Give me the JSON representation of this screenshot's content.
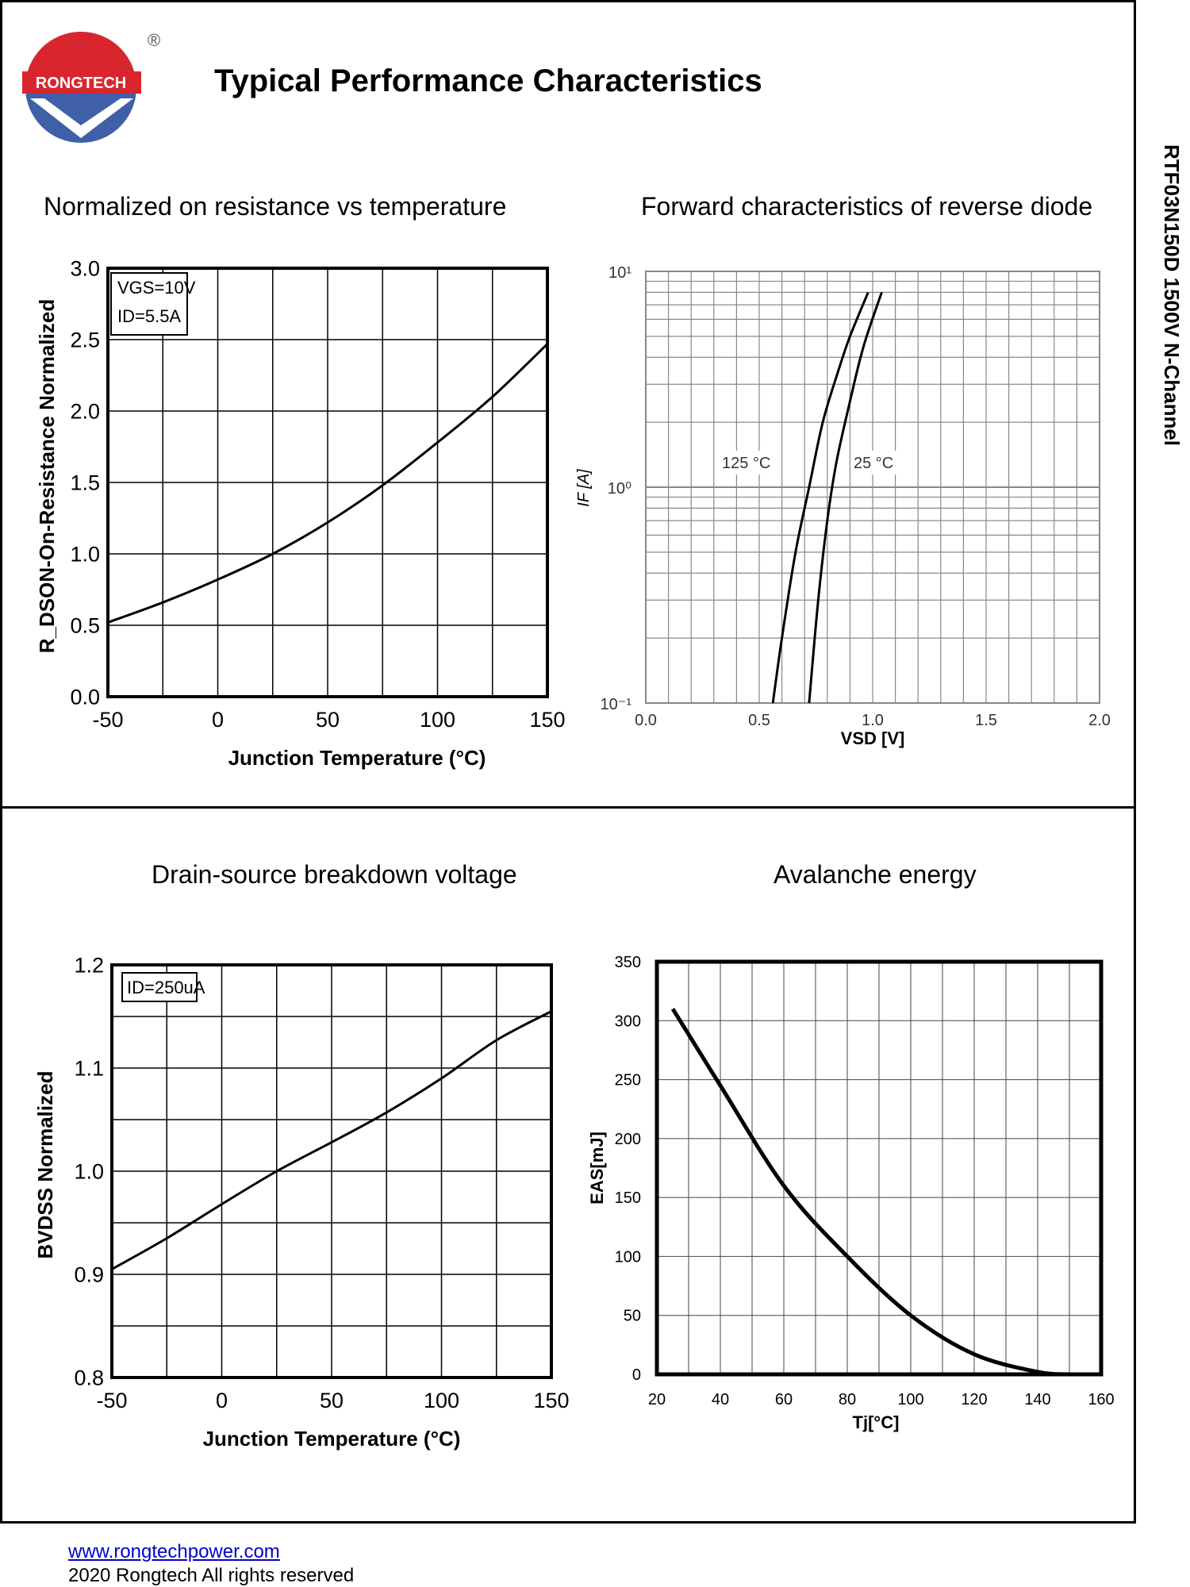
{
  "brand": {
    "name": "RONGTECH",
    "registered": "®"
  },
  "header": {
    "title": "Typical Performance Characteristics"
  },
  "side_title": "RTF03N150D 1500V N-Channel",
  "footer": {
    "link": "www.rongtechpower.com",
    "copyright": "2020 Rongtech All rights reserved"
  },
  "colors": {
    "logo_red": "#d9262e",
    "logo_blue": "#3f5fa8",
    "link": "#0000cc"
  },
  "chart_data": [
    {
      "id": "rdson",
      "type": "line",
      "title": "Normalized on resistance vs temperature",
      "xlabel": "Junction Temperature (°C)",
      "ylabel": "R_DSON-On-Resistance Normalized",
      "xlim": [
        -50,
        150
      ],
      "ylim": [
        0,
        3.0
      ],
      "xticks": [
        -50,
        0,
        50,
        100,
        150
      ],
      "yticks": [
        0.0,
        0.5,
        1.0,
        1.5,
        2.0,
        2.5,
        3.0
      ],
      "ytick_labels": [
        "0.0",
        "0.5",
        "1.0",
        "1.5",
        "2.0",
        "2.5",
        "3.0"
      ],
      "annotations": [
        "VGS=10V",
        "ID=5.5A"
      ],
      "series": [
        {
          "name": "RDSON",
          "x": [
            -50,
            -25,
            0,
            25,
            50,
            75,
            100,
            125,
            150
          ],
          "y": [
            0.52,
            0.66,
            0.82,
            1.0,
            1.22,
            1.48,
            1.78,
            2.1,
            2.47
          ]
        }
      ]
    },
    {
      "id": "diode",
      "type": "line",
      "title": "Forward characteristics of reverse diode",
      "xlabel": "VSD [V]",
      "ylabel": "IF [A]",
      "xlim": [
        0,
        2.0
      ],
      "ylim": [
        0.1,
        10
      ],
      "yscale": "log",
      "xticks": [
        0.0,
        0.5,
        1.0,
        1.5,
        2.0
      ],
      "xtick_labels": [
        "0.0",
        "0.5",
        "1.0",
        "1.5",
        "2.0"
      ],
      "ytick_labels": [
        "10¹",
        "10⁰",
        "10⁻¹"
      ],
      "series": [
        {
          "name": "125 °C",
          "x": [
            0.56,
            0.6,
            0.66,
            0.72,
            0.78,
            0.85,
            0.9,
            0.98
          ],
          "y": [
            0.1,
            0.2,
            0.5,
            1.0,
            2.0,
            3.5,
            5.0,
            8.0
          ]
        },
        {
          "name": "25 °C",
          "x": [
            0.72,
            0.76,
            0.8,
            0.84,
            0.9,
            0.96,
            1.04
          ],
          "y": [
            0.1,
            0.3,
            0.7,
            1.3,
            2.5,
            4.5,
            8.0
          ]
        }
      ]
    },
    {
      "id": "bvdss",
      "type": "line",
      "title": "Drain-source breakdown voltage",
      "xlabel": "Junction Temperature (°C)",
      "ylabel": "BVDSS Normalized",
      "xlim": [
        -50,
        150
      ],
      "ylim": [
        0.8,
        1.2
      ],
      "xticks": [
        -50,
        0,
        50,
        100,
        150
      ],
      "yticks": [
        0.8,
        0.9,
        1.0,
        1.1,
        1.2
      ],
      "ytick_labels": [
        "0.8",
        "0.9",
        "1.0",
        "1.1",
        "1.2"
      ],
      "annotations": [
        "ID=250uA"
      ],
      "series": [
        {
          "name": "BVDSS",
          "x": [
            -50,
            -25,
            0,
            25,
            50,
            75,
            100,
            125,
            150
          ],
          "y": [
            0.905,
            0.935,
            0.968,
            1.0,
            1.028,
            1.057,
            1.09,
            1.127,
            1.155
          ]
        }
      ]
    },
    {
      "id": "eas",
      "type": "line",
      "title": "Avalanche energy",
      "xlabel": "Tj[°C]",
      "ylabel": "EAS[mJ]",
      "xlim": [
        20,
        160
      ],
      "ylim": [
        0,
        350
      ],
      "xticks": [
        20,
        40,
        60,
        80,
        100,
        120,
        140,
        160
      ],
      "yticks": [
        0,
        50,
        100,
        150,
        200,
        250,
        300,
        350
      ],
      "series": [
        {
          "name": "EAS",
          "x": [
            25,
            40,
            60,
            80,
            100,
            120,
            140,
            150
          ],
          "y": [
            310,
            245,
            160,
            100,
            50,
            17,
            2,
            0
          ]
        }
      ]
    }
  ]
}
